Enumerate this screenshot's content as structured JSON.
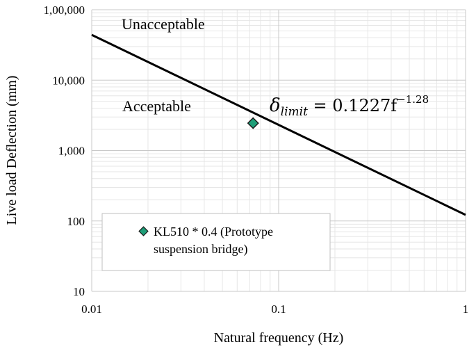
{
  "chart_data": {
    "type": "scatter",
    "xscale": "log",
    "yscale": "log",
    "xlim": [
      0.01,
      1
    ],
    "ylim": [
      10,
      100000
    ],
    "xticks": [
      "0.01",
      "0.1",
      "1"
    ],
    "yticks": [
      "10",
      "100",
      "1,000",
      "10,000",
      "1,00,000"
    ],
    "xlabel": "Natural frequency (Hz)",
    "ylabel": "Live load Deflection (mm)",
    "grid": true,
    "legend_position": "bottom-left",
    "limit_line": {
      "coefficient": 0.1227,
      "exponent": -1.28,
      "x_range": [
        0.01,
        1
      ],
      "y_values": [
        44000,
        122
      ],
      "color": "#000000"
    },
    "series": [
      {
        "name": "KL510 * 0.4 (Prototype suspension bridge)",
        "marker": "diamond",
        "color": "#1e9e78",
        "points": [
          {
            "x": 0.073,
            "y": 2450
          }
        ]
      }
    ],
    "annotations": {
      "unacceptable": "Unacceptable",
      "acceptable": "Acceptable",
      "equation_lhs": "δ",
      "equation_sub": "limit",
      "equation_rhs": " = 0.1227f",
      "equation_exp": "−1.28"
    },
    "legend": {
      "line1": "KL510 * 0.4 (Prototype",
      "line2": "suspension bridge)"
    }
  }
}
